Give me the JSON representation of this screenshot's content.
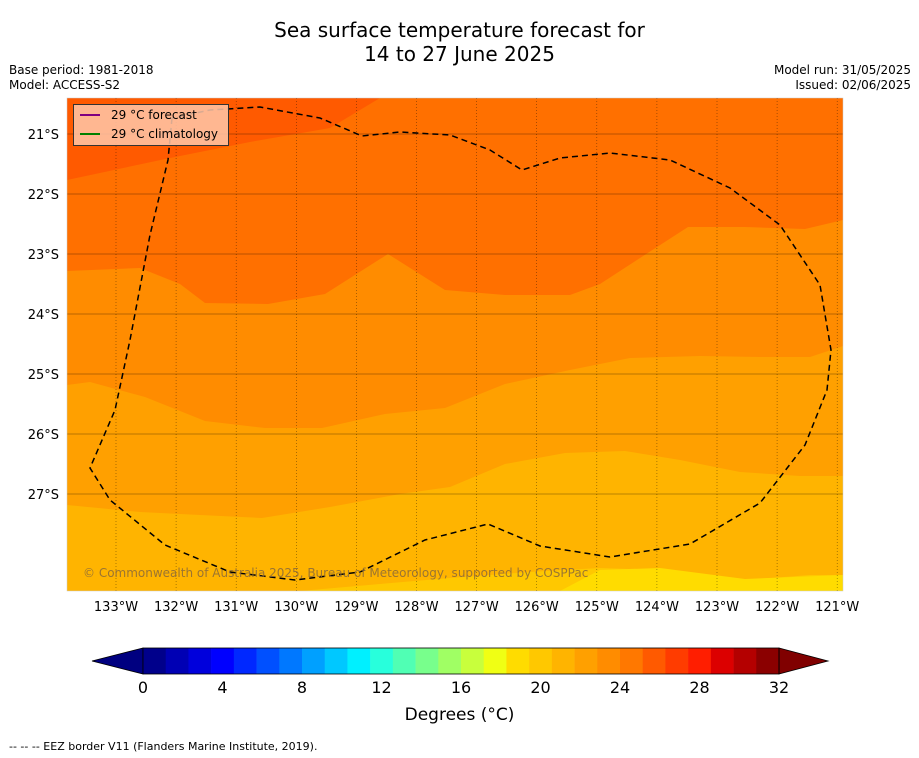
{
  "title_line1": "Sea surface temperature forecast for",
  "title_line2": "14 to 27 June 2025",
  "base_period": "Base period: 1981-2018",
  "model": "Model: ACCESS-S2",
  "model_run": "Model run: 31/05/2025",
  "issued": "Issued: 02/06/2025",
  "legend": {
    "forecast": "29 °C  forecast",
    "climatology": "29 °C  climatology",
    "forecast_color": "#800080",
    "climatology_color": "#008000"
  },
  "copyright": "© Commonwealth of Australia 2025, Bureau of Meteorology, supported by COSPPac",
  "lat_labels": [
    "21°S",
    "22°S",
    "23°S",
    "24°S",
    "25°S",
    "26°S",
    "27°S"
  ],
  "lon_labels": [
    "133°W",
    "132°W",
    "131°W",
    "130°W",
    "129°W",
    "128°W",
    "127°W",
    "126°W",
    "125°W",
    "124°W",
    "123°W",
    "122°W",
    "121°W"
  ],
  "colorbar": {
    "title": "Degrees (°C)",
    "ticks": [
      "0",
      "4",
      "8",
      "12",
      "16",
      "20",
      "24",
      "28",
      "32"
    ],
    "colors": [
      "#00008b",
      "#0000b4",
      "#0000dc",
      "#0000ff",
      "#0028ff",
      "#0050ff",
      "#0078ff",
      "#00a0ff",
      "#00c8ff",
      "#00f0ff",
      "#28ffdc",
      "#50ffb4",
      "#78ff8c",
      "#a0ff64",
      "#c8ff3c",
      "#f0ff14",
      "#ffdc00",
      "#ffc800",
      "#ffb400",
      "#ffa000",
      "#ff8c00",
      "#ff7800",
      "#ff5a00",
      "#ff3c00",
      "#ff1e00",
      "#dc0000",
      "#b40000",
      "#8b0000"
    ]
  },
  "footnote": "--  --  -- EEZ border V11 (Flanders Marine Institute, 2019)."
}
